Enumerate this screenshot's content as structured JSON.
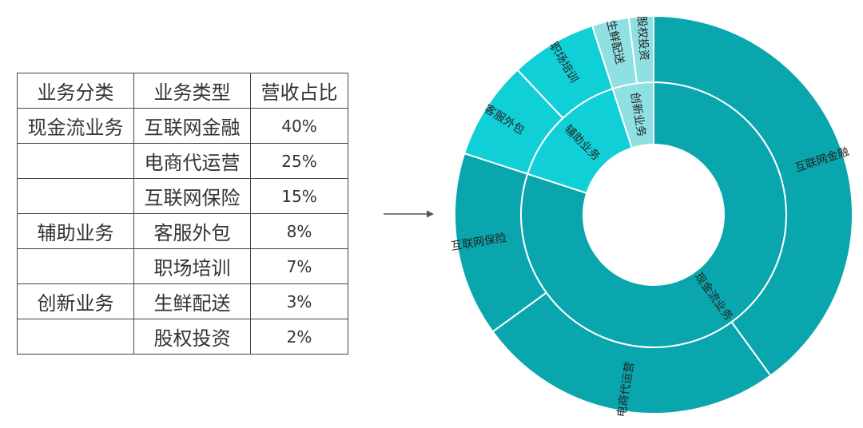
{
  "table": {
    "headers": [
      "业务分类",
      "业务类型",
      "营收占比"
    ],
    "rows": [
      {
        "category": "现金流业务",
        "type": "互联网金融",
        "share": "40%"
      },
      {
        "category": "",
        "type": "电商代运营",
        "share": "25%"
      },
      {
        "category": "",
        "type": "互联网保险",
        "share": "15%"
      },
      {
        "category": "辅助业务",
        "type": "客服外包",
        "share": "8%"
      },
      {
        "category": "",
        "type": "职场培训",
        "share": "7%"
      },
      {
        "category": "创新业务",
        "type": "生鲜配送",
        "share": "3%"
      },
      {
        "category": "",
        "type": "股权投资",
        "share": "2%"
      }
    ]
  },
  "chart_data": {
    "type": "sunburst",
    "inner_ring": [
      {
        "name": "现金流业务",
        "value": 80,
        "color": "#0aa6ad"
      },
      {
        "name": "辅助业务",
        "value": 15,
        "color": "#11cfd7"
      },
      {
        "name": "创新业务",
        "value": 5,
        "color": "#8ee0e3"
      }
    ],
    "outer_ring": [
      {
        "name": "互联网金融",
        "value": 40,
        "parent": "现金流业务",
        "color": "#0aa6ad"
      },
      {
        "name": "电商代运营",
        "value": 25,
        "parent": "现金流业务",
        "color": "#0aa6ad"
      },
      {
        "name": "互联网保险",
        "value": 15,
        "parent": "现金流业务",
        "color": "#0aa6ad"
      },
      {
        "name": "客服外包",
        "value": 8,
        "parent": "辅助业务",
        "color": "#11cfd7"
      },
      {
        "name": "职场培训",
        "value": 7,
        "parent": "辅助业务",
        "color": "#11cfd7"
      },
      {
        "name": "生鲜配送",
        "value": 3,
        "parent": "创新业务",
        "color": "#8ee0e3"
      },
      {
        "name": "股权投资",
        "value": 2,
        "parent": "创新业务",
        "color": "#8ee0e3"
      }
    ]
  }
}
